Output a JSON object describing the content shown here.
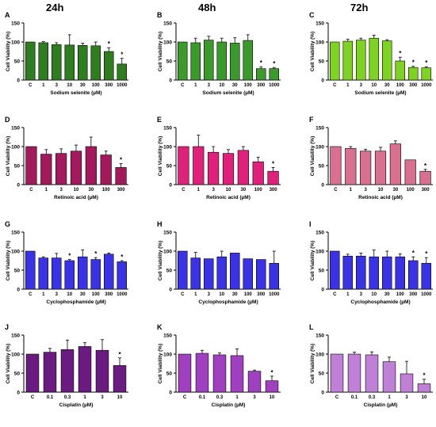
{
  "col_titles": [
    "24h",
    "48h",
    "72h"
  ],
  "colors": {
    "selenite_24h": "#2e7d1e",
    "selenite_48h": "#3a9a2a",
    "selenite_72h": "#7ed321",
    "retinoic_24h": "#a3195b",
    "retinoic_48h": "#e0207a",
    "retinoic_72h": "#d97090",
    "cyclo": "#3a32e6",
    "cisplatin_24h": "#6a1a80",
    "cisplatin_48h": "#a040c0",
    "cisplatin_72h": "#c080d8",
    "star": "#000000"
  },
  "chart_data": [
    {
      "panel": "A",
      "type": "bar",
      "color_key": "selenite_24h",
      "categories": [
        "C",
        "1",
        "3",
        "10",
        "30",
        "100",
        "300",
        "1000"
      ],
      "values": [
        100,
        98,
        93,
        92,
        91,
        90,
        75,
        42
      ],
      "errors": [
        0,
        3,
        5,
        27,
        6,
        10,
        10,
        15
      ],
      "sig": [
        false,
        false,
        false,
        false,
        false,
        false,
        true,
        true
      ],
      "xlabel": "Sodium selenite (µM)",
      "ylabel": "Cell Viability (%)",
      "ylim": [
        0,
        150
      ]
    },
    {
      "panel": "B",
      "type": "bar",
      "color_key": "selenite_48h",
      "categories": [
        "C",
        "1",
        "3",
        "10",
        "30",
        "100",
        "300",
        "1000"
      ],
      "values": [
        100,
        98,
        105,
        100,
        97,
        104,
        30,
        30
      ],
      "errors": [
        0,
        12,
        10,
        10,
        14,
        15,
        5,
        3
      ],
      "sig": [
        false,
        false,
        false,
        false,
        false,
        false,
        true,
        true
      ],
      "xlabel": "Sodium selenite (µM)",
      "ylabel": "Cell Viability (%)",
      "ylim": [
        0,
        150
      ]
    },
    {
      "panel": "C",
      "type": "bar",
      "color_key": "selenite_72h",
      "categories": [
        "C",
        "1",
        "3",
        "10",
        "30",
        "100",
        "300",
        "1000"
      ],
      "values": [
        100,
        102,
        105,
        110,
        103,
        50,
        33,
        32
      ],
      "errors": [
        0,
        5,
        5,
        8,
        3,
        10,
        3,
        3
      ],
      "sig": [
        false,
        false,
        false,
        false,
        false,
        true,
        true,
        true
      ],
      "xlabel": "Sodium selenite (µM)",
      "ylabel": "Cell Viability (%)",
      "ylim": [
        0,
        150
      ]
    },
    {
      "panel": "D",
      "type": "bar",
      "color_key": "retinoic_24h",
      "categories": [
        "C",
        "1",
        "3",
        "10",
        "30",
        "100",
        "300"
      ],
      "values": [
        100,
        80,
        82,
        88,
        100,
        78,
        45
      ],
      "errors": [
        0,
        12,
        12,
        16,
        25,
        10,
        10
      ],
      "sig": [
        false,
        false,
        false,
        false,
        false,
        false,
        true
      ],
      "xlabel": "Retinoic acid (µM)",
      "ylabel": "Cell Viability (%)",
      "ylim": [
        0,
        150
      ]
    },
    {
      "panel": "E",
      "type": "bar",
      "color_key": "retinoic_48h",
      "categories": [
        "C",
        "1",
        "3",
        "10",
        "30",
        "100",
        "300"
      ],
      "values": [
        100,
        100,
        85,
        82,
        90,
        60,
        35
      ],
      "errors": [
        0,
        30,
        15,
        10,
        10,
        12,
        10
      ],
      "sig": [
        false,
        false,
        false,
        false,
        false,
        false,
        true
      ],
      "xlabel": "Retinoic acid (µM)",
      "ylabel": "Cell Viability (%)",
      "ylim": [
        0,
        150
      ]
    },
    {
      "panel": "F",
      "type": "bar",
      "color_key": "retinoic_72h",
      "categories": [
        "C",
        "1",
        "3",
        "10",
        "30",
        "100",
        "300"
      ],
      "values": [
        100,
        95,
        88,
        88,
        107,
        65,
        35
      ],
      "errors": [
        0,
        5,
        5,
        10,
        8,
        0,
        5
      ],
      "sig": [
        false,
        false,
        false,
        false,
        false,
        false,
        true
      ],
      "xlabel": "Retinoic acid (µM)",
      "ylabel": "Cell Viability (%)",
      "ylim": [
        0,
        150
      ]
    },
    {
      "panel": "G",
      "type": "bar",
      "color_key": "cyclo",
      "categories": [
        "C",
        "1",
        "3",
        "10",
        "30",
        "100",
        "300",
        "1000"
      ],
      "values": [
        100,
        82,
        82,
        75,
        85,
        78,
        92,
        72
      ],
      "errors": [
        0,
        3,
        12,
        3,
        18,
        5,
        3,
        3
      ],
      "sig": [
        false,
        false,
        false,
        true,
        false,
        true,
        false,
        true
      ],
      "xlabel": "Cyclophosphamide (µM)",
      "ylabel": "Cell Viability (%)",
      "ylim": [
        0,
        150
      ]
    },
    {
      "panel": "H",
      "type": "bar",
      "color_key": "cyclo",
      "categories": [
        "C",
        "1",
        "3",
        "10",
        "30",
        "100",
        "300",
        "1000"
      ],
      "values": [
        100,
        82,
        80,
        85,
        95,
        80,
        78,
        68
      ],
      "errors": [
        0,
        15,
        0,
        15,
        0,
        0,
        0,
        32
      ],
      "sig": [
        false,
        false,
        false,
        false,
        false,
        false,
        false,
        false
      ],
      "xlabel": "Cyclophosphamide (µM)",
      "ylabel": "Cell Viability (%)",
      "ylim": [
        0,
        150
      ]
    },
    {
      "panel": "I",
      "type": "bar",
      "color_key": "cyclo",
      "categories": [
        "C",
        "1",
        "3",
        "10",
        "30",
        "100",
        "300",
        "1000"
      ],
      "values": [
        100,
        87,
        87,
        85,
        85,
        85,
        75,
        68
      ],
      "errors": [
        0,
        5,
        8,
        18,
        15,
        8,
        10,
        15
      ],
      "sig": [
        false,
        false,
        false,
        false,
        false,
        false,
        true,
        true
      ],
      "xlabel": "Cyclophosphamide (µM)",
      "ylabel": "Cell Viability (%)",
      "ylim": [
        0,
        150
      ]
    },
    {
      "panel": "J",
      "type": "bar",
      "color_key": "cisplatin_24h",
      "categories": [
        "C",
        "0.1",
        "0.3",
        "1",
        "3",
        "10"
      ],
      "values": [
        100,
        105,
        112,
        120,
        110,
        70
      ],
      "errors": [
        0,
        10,
        25,
        10,
        28,
        20
      ],
      "sig": [
        false,
        false,
        false,
        false,
        false,
        true
      ],
      "xlabel": "Cisplatin (µM)",
      "ylabel": "Cell Viability (%)",
      "ylim": [
        0,
        150
      ]
    },
    {
      "panel": "K",
      "type": "bar",
      "color_key": "cisplatin_48h",
      "categories": [
        "C",
        "0.1",
        "0.3",
        "1",
        "3",
        "10"
      ],
      "values": [
        100,
        102,
        98,
        96,
        55,
        30
      ],
      "errors": [
        0,
        8,
        5,
        18,
        3,
        12
      ],
      "sig": [
        false,
        false,
        false,
        false,
        false,
        true
      ],
      "xlabel": "Cisplatin (µM)",
      "ylabel": "Cell Viability (%)",
      "ylim": [
        0,
        150
      ]
    },
    {
      "panel": "L",
      "type": "bar",
      "color_key": "cisplatin_72h",
      "categories": [
        "C",
        "0.1",
        "0.3",
        "1",
        "3",
        "10"
      ],
      "values": [
        100,
        100,
        98,
        80,
        48,
        22
      ],
      "errors": [
        0,
        5,
        8,
        12,
        33,
        12
      ],
      "sig": [
        false,
        false,
        false,
        false,
        false,
        true
      ],
      "xlabel": "Cisplatin (µM)",
      "ylabel": "Cell Viability (%)",
      "ylim": [
        0,
        150
      ]
    }
  ]
}
